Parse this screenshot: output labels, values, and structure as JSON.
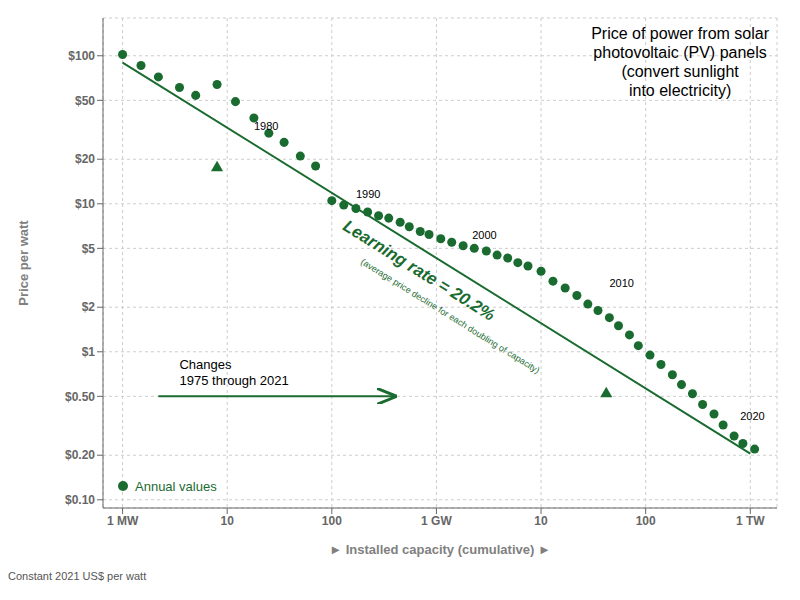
{
  "chart_data": {
    "type": "scatter",
    "title": "Price of power from solar\nphotovoltaic (PV) panels\n(convert sunlight\ninto electricity)",
    "xlabel": "► Installed capacity (cumulative) ►",
    "ylabel": "Price per watt",
    "footnote": "Constant 2021 US$ per watt",
    "log": true,
    "grid": true,
    "legend": "lower left",
    "xlim": [
      650000.0,
      1800000000000.0
    ],
    "ylim": [
      0.088,
      180
    ],
    "xticks": [
      {
        "value": 1000000.0,
        "label": "1 MW"
      },
      {
        "value": 10000000.0,
        "label": "10"
      },
      {
        "value": 100000000.0,
        "label": "100"
      },
      {
        "value": 1000000000.0,
        "label": "1 GW"
      },
      {
        "value": 10000000000.0,
        "label": "10"
      },
      {
        "value": 100000000000.0,
        "label": "100"
      },
      {
        "value": 1000000000000.0,
        "label": "1 TW"
      }
    ],
    "yticks": [
      {
        "value": 0.1,
        "label": "$0.10"
      },
      {
        "value": 0.2,
        "label": "$0.20"
      },
      {
        "value": 0.5,
        "label": "$0.50"
      },
      {
        "value": 1.0,
        "label": "$1"
      },
      {
        "value": 2.0,
        "label": "$2"
      },
      {
        "value": 5.0,
        "label": "$5"
      },
      {
        "value": 10.0,
        "label": "$10"
      },
      {
        "value": 20.0,
        "label": "$20"
      },
      {
        "value": 50.0,
        "label": "$50"
      },
      {
        "value": 100.0,
        "label": "$100"
      }
    ],
    "series": [
      {
        "name": "Annual values",
        "type": "scatter",
        "marker": "circle",
        "color": "#1a6b30",
        "x": [
          1000000.0,
          1500000.0,
          2200000.0,
          3500000.0,
          5000000.0,
          8000000.0,
          12000000.0,
          18000000.0,
          25000000.0,
          35000000.0,
          50000000.0,
          70000000.0,
          100000000.0,
          130000000.0,
          170000000.0,
          220000000.0,
          280000000.0,
          350000000.0,
          450000000.0,
          550000000.0,
          700000000.0,
          850000000.0,
          1100000000.0,
          1400000000.0,
          1800000000.0,
          2300000000.0,
          3000000000.0,
          3800000000.0,
          4800000000.0,
          6000000000.0,
          7500000000.0,
          10000000000.0,
          13000000000.0,
          17000000000.0,
          22000000000.0,
          28000000000.0,
          35000000000.0,
          45000000000.0,
          55000000000.0,
          70000000000.0,
          85000000000.0,
          110000000000.0,
          140000000000.0,
          180000000000.0,
          220000000000.0,
          280000000000.0,
          350000000000.0,
          450000000000.0,
          550000000000.0,
          700000000000.0,
          850000000000.0,
          1100000000000.0
        ],
        "values": [
          102,
          86,
          72,
          61,
          54,
          64,
          49,
          38,
          30,
          26,
          21,
          18,
          10.5,
          9.8,
          9.3,
          8.8,
          8.3,
          8.0,
          7.5,
          7.0,
          6.5,
          6.2,
          5.8,
          5.5,
          5.2,
          5.0,
          4.8,
          4.5,
          4.3,
          4.0,
          3.8,
          3.5,
          3.0,
          2.7,
          2.4,
          2.1,
          1.9,
          1.7,
          1.5,
          1.3,
          1.1,
          0.95,
          0.82,
          0.7,
          0.6,
          0.52,
          0.44,
          0.38,
          0.32,
          0.27,
          0.24,
          0.22
        ]
      },
      {
        "type": "line",
        "line_style": "solid",
        "color": "#1a6b30",
        "x": [
          1000000.0,
          1000000000000.0
        ],
        "values": [
          90.0,
          0.205
        ]
      },
      {
        "type": "scatter",
        "marker": "triangle",
        "color": "#1a6b30",
        "x": [
          8000000.0,
          42000000000.0
        ],
        "values": [
          17.5,
          0.52
        ]
      }
    ],
    "annotations": [
      {
        "text": "1980",
        "x": 18000000.0,
        "y": 30.0
      },
      {
        "text": "1990",
        "x": 170000000.0,
        "y": 10.5
      },
      {
        "text": "2000",
        "x": 2200000000.0,
        "y": 5.5
      },
      {
        "text": "2010",
        "x": 45000000000.0,
        "y": 2.6
      },
      {
        "text": "2020",
        "x": 800000000000.0,
        "y": 0.33
      },
      {
        "text": "Learning rate = 20.2%",
        "x": 120000000.0,
        "y": 6.5
      },
      {
        "text": "(average price decline for each doubling of capacity)",
        "x": 180000000.0,
        "y": 3.8
      },
      {
        "text": "Changes\n1975 through 2021",
        "x": 3500000.0,
        "y": 0.57,
        "arrow": {
          "x": [
            2200000.0,
            400000000.0
          ],
          "y": 0.5
        }
      }
    ]
  }
}
